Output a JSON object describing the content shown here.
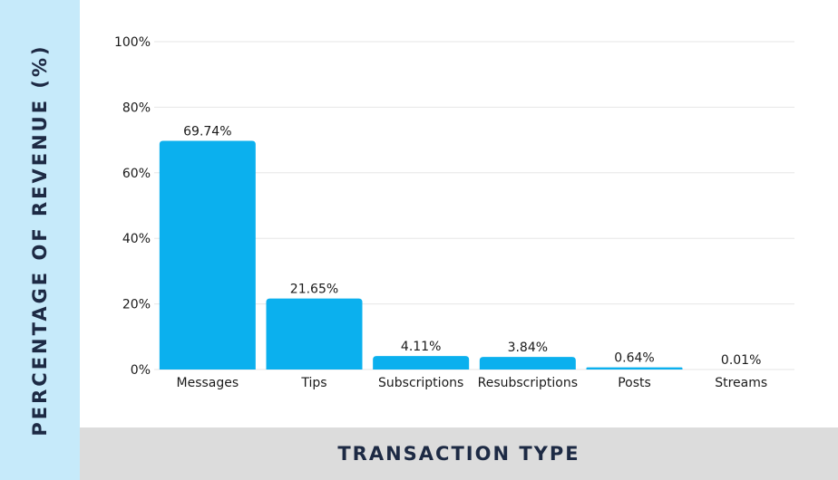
{
  "chart_data": {
    "type": "bar",
    "categories": [
      "Messages",
      "Tips",
      "Subscriptions",
      "Resubscriptions",
      "Posts",
      "Streams"
    ],
    "values": [
      69.74,
      21.65,
      4.11,
      3.84,
      0.64,
      0.01
    ],
    "data_labels": [
      "69.74%",
      "21.65%",
      "4.11%",
      "3.84%",
      "0.64%",
      "0.01%"
    ],
    "title": "",
    "xlabel": "TRANSACTION TYPE",
    "ylabel": "PERCENTAGE OF REVENUE (%)",
    "ylim": [
      0,
      100
    ],
    "yticks": [
      0,
      20,
      40,
      60,
      80,
      100
    ],
    "ytick_labels": [
      "0%",
      "20%",
      "40%",
      "60%",
      "80%",
      "100%"
    ],
    "grid": true,
    "legend": "none",
    "colors": {
      "bar": "#0bb0ee",
      "gridline": "#e6e6e6",
      "text": "#1a1a1a",
      "axis_title": "#1d2a44",
      "ylabel_band": "#c6eafa",
      "xlabel_band": "#dcdcdc"
    }
  }
}
